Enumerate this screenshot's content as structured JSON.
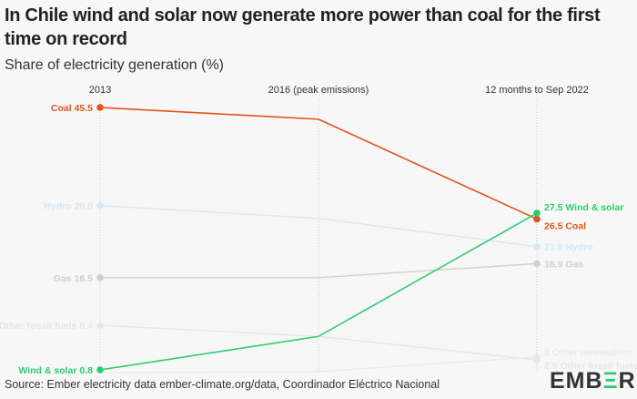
{
  "title": "In Chile wind and solar now generate more power than coal for the first time on record",
  "subtitle": "Share of electricity generation (%)",
  "source": "Source: Ember electricity data ember-climate.org/data, Coordinador Eléctrico Nacional",
  "logo": "EMBER",
  "chart_data": {
    "type": "line",
    "categories": [
      "2013",
      "2016 (peak emissions)",
      "12 months to Sep 2022"
    ],
    "series": [
      {
        "name": "Coal",
        "values": [
          45.5,
          43.5,
          26.5
        ],
        "color": "#e0531b",
        "left_label": "Coal 45.5",
        "right_label": "26.5 Coal"
      },
      {
        "name": "Hydro",
        "values": [
          28.8,
          26.6,
          21.8
        ],
        "color": "#d7e8f5",
        "left_label": "Hydro 28.8",
        "right_label": "21.8 Hydro"
      },
      {
        "name": "Gas",
        "values": [
          16.5,
          16.5,
          18.9
        ],
        "color": "#cfcfcf",
        "left_label": "Gas 16.5",
        "right_label": "18.9 Gas"
      },
      {
        "name": "Other fossil fuels",
        "values": [
          8.4,
          6.5,
          2.5
        ],
        "color": "#e6e6e6",
        "left_label": "Other fossil fuels 8.4",
        "right_label": "2.5 Other fossil fuels"
      },
      {
        "name": "Other renewables",
        "values": [
          0.3,
          0.5,
          3
        ],
        "color": "#e3eee9",
        "left_label": "",
        "right_label": "3 Other renewables"
      },
      {
        "name": "Wind & solar",
        "values": [
          0.8,
          6.5,
          27.5
        ],
        "color": "#2ecc71",
        "left_label": "Wind & solar 0.8",
        "right_label": "27.5 Wind & solar"
      }
    ],
    "ylim": [
      0.8,
      45.5
    ],
    "grid": false
  }
}
